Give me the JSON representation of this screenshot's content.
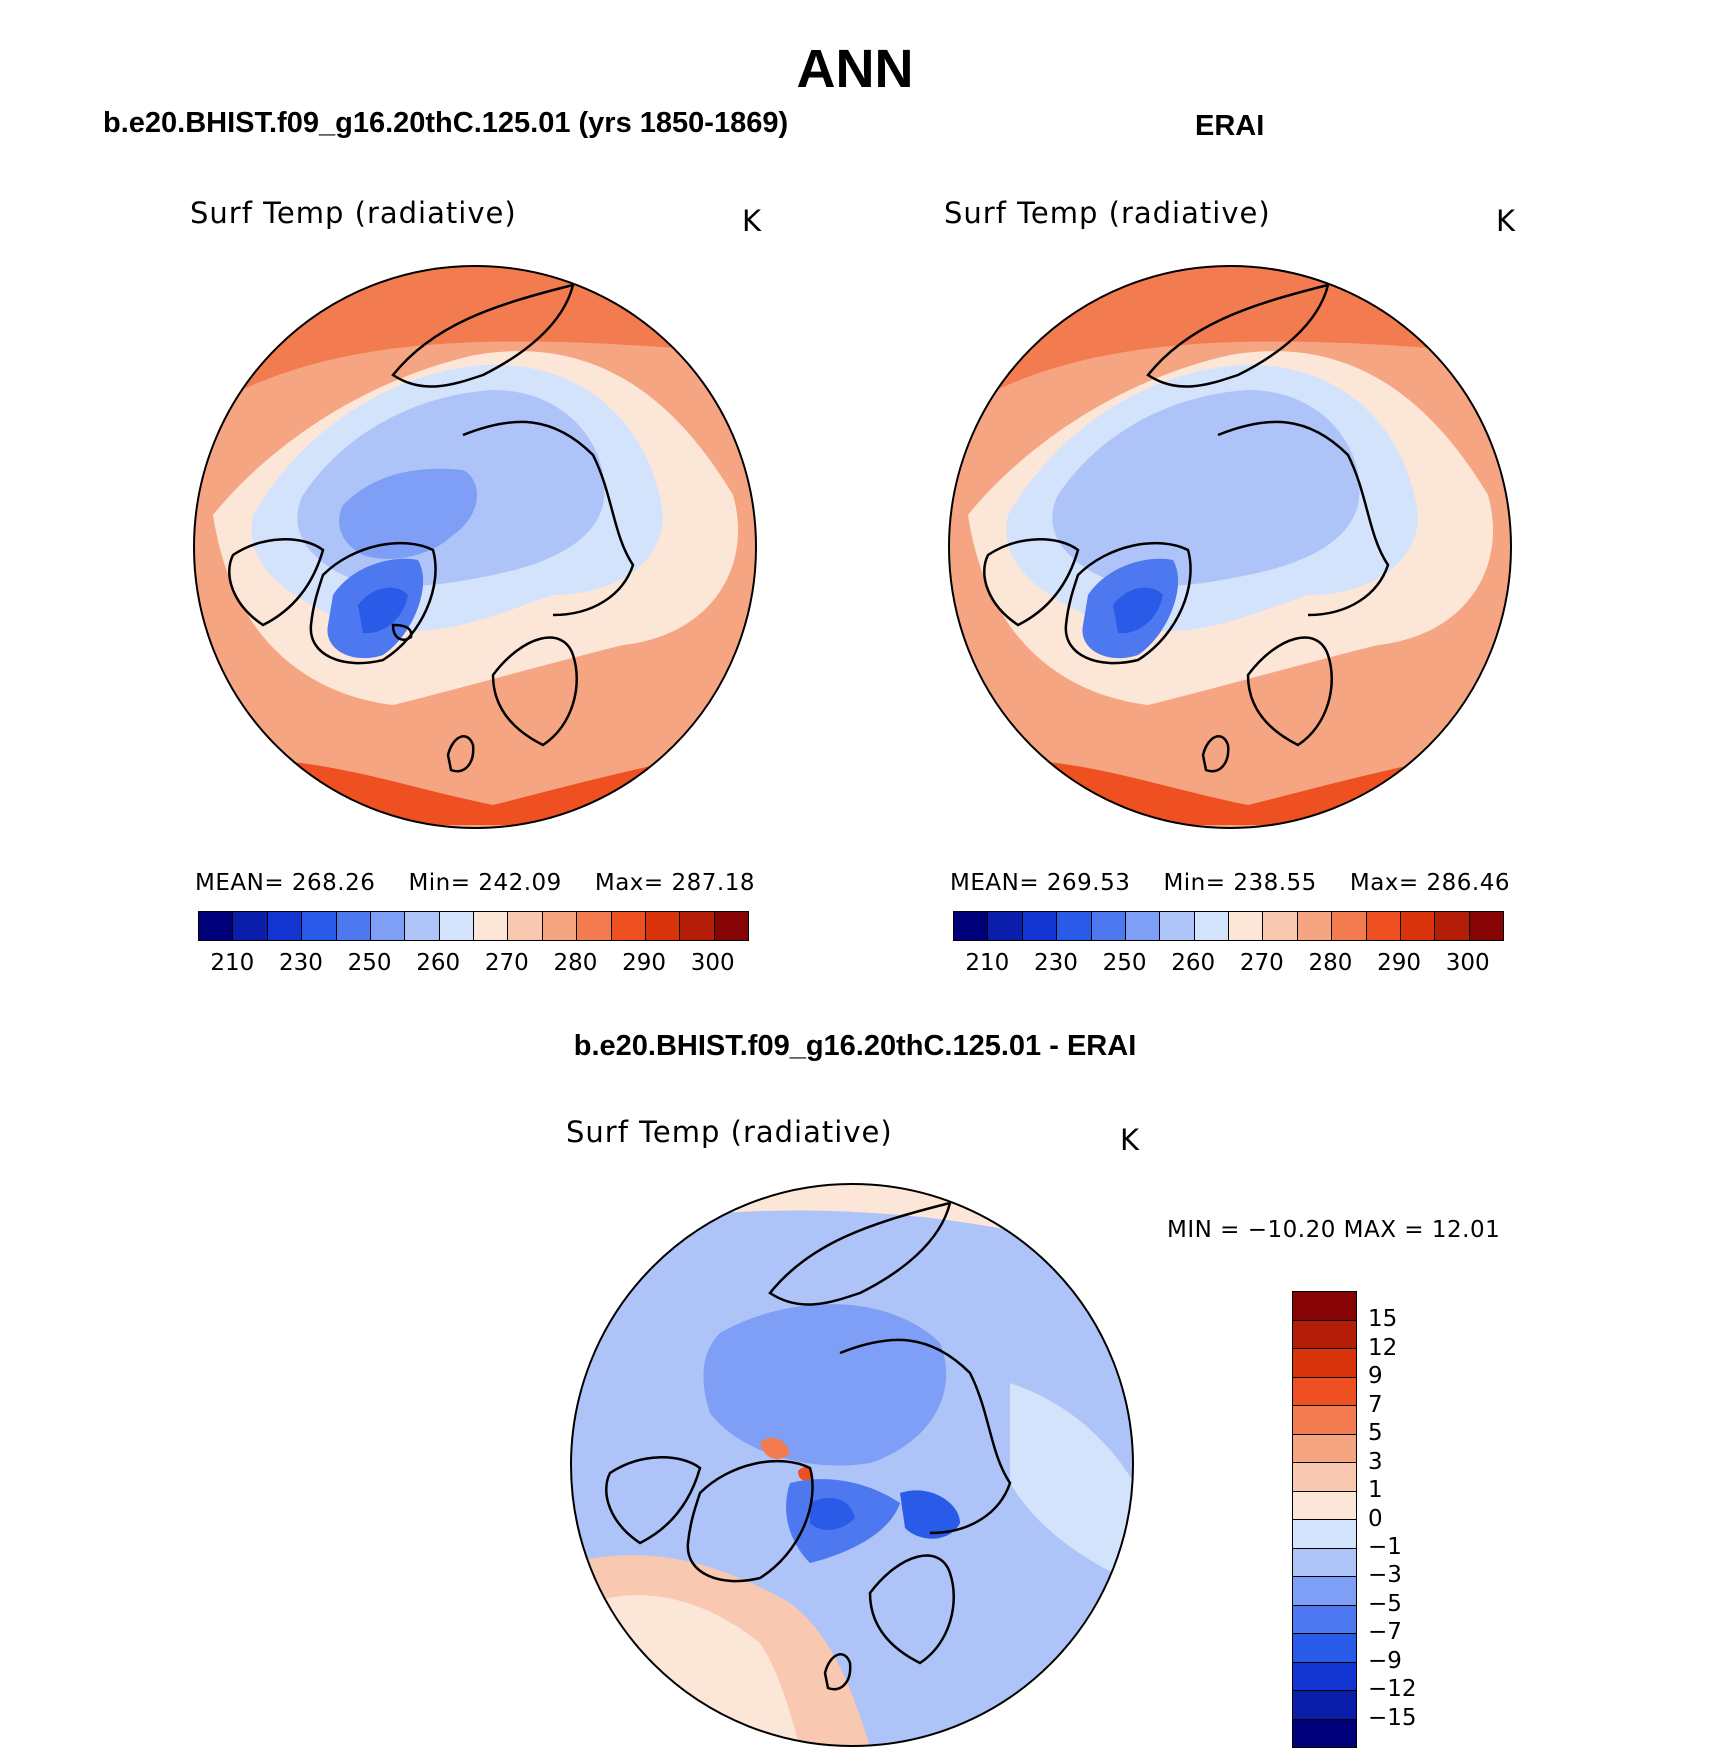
{
  "title": "ANN",
  "panels": [
    {
      "title": "b.e20.BHIST.f09_g16.20thC.125.01 (yrs 1850-1869)",
      "variable": "Surf Temp (radiative)",
      "units": "K",
      "stats": {
        "mean": "MEAN=  268.26",
        "min": "Min=  242.09",
        "max": "Max=  287.18"
      }
    },
    {
      "title": "ERAI",
      "variable": "Surf Temp (radiative)",
      "units": "K",
      "stats": {
        "mean": "MEAN=  269.53",
        "min": "Min=  238.55",
        "max": "Max=  286.46"
      }
    },
    {
      "title": "b.e20.BHIST.f09_g16.20thC.125.01 - ERAI",
      "variable": "Surf Temp (radiative)",
      "units": "K",
      "stats": {
        "minmax": "MIN  =  −10.20  MAX  =    12.01"
      }
    }
  ],
  "abs_colorbar": {
    "colors": [
      "#00007a",
      "#0a1eab",
      "#1235d2",
      "#2a5ae8",
      "#4d78f0",
      "#7e9ff5",
      "#aec4f8",
      "#d3e3fb",
      "#fce6d8",
      "#f9c8b0",
      "#f6a582",
      "#f37b50",
      "#ee5022",
      "#d9330b",
      "#b41d08",
      "#860404"
    ],
    "labels": [
      "210",
      "230",
      "250",
      "260",
      "270",
      "280",
      "290",
      "300"
    ]
  },
  "diff_colorbar": {
    "colors": [
      "#860404",
      "#b41d08",
      "#d9330b",
      "#ee5022",
      "#f37b50",
      "#f6a582",
      "#f9c8b0",
      "#fce6d8",
      "#d3e3fb",
      "#aec4f8",
      "#7e9ff5",
      "#4d78f0",
      "#2a5ae8",
      "#1235d2",
      "#0a1eab",
      "#00007a"
    ],
    "labels": [
      "15",
      "12",
      "9",
      "7",
      "5",
      "3",
      "1",
      "0",
      "−1",
      "−3",
      "−5",
      "−7",
      "−9",
      "−12",
      "−15"
    ]
  }
}
